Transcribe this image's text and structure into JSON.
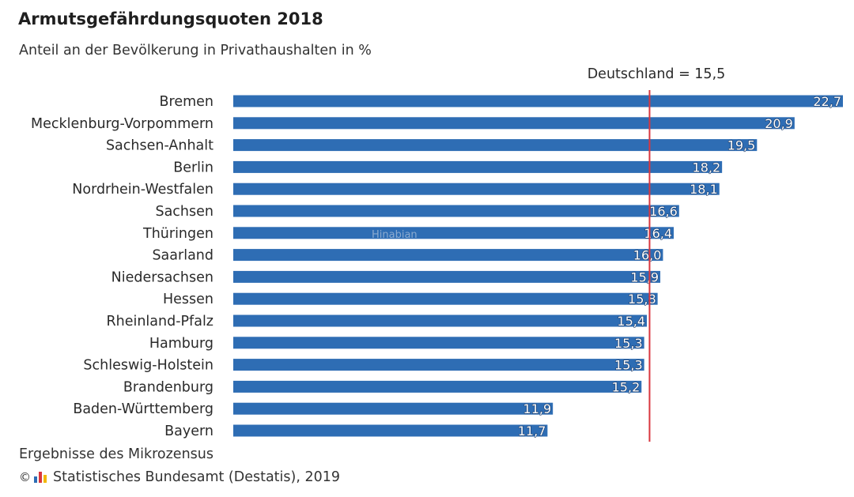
{
  "chart_data": {
    "type": "bar",
    "orientation": "horizontal",
    "title": "Armutsgefährdungsquoten 2018",
    "subtitle": "Anteil an der Bevölkerung in Privathaushalten in %",
    "categories": [
      "Bremen",
      "Mecklenburg-Vorpommern",
      "Sachsen-Anhalt",
      "Berlin",
      "Nordrhein-Westfalen",
      "Sachsen",
      "Thüringen",
      "Saarland",
      "Niedersachsen",
      "Hessen",
      "Rheinland-Pfalz",
      "Hamburg",
      "Schleswig-Holstein",
      "Brandenburg",
      "Baden-Württemberg",
      "Bayern"
    ],
    "values": [
      22.7,
      20.9,
      19.5,
      18.2,
      18.1,
      16.6,
      16.4,
      16.0,
      15.9,
      15.8,
      15.4,
      15.3,
      15.3,
      15.2,
      11.9,
      11.7
    ],
    "value_labels": [
      "22,7",
      "20,9",
      "19,5",
      "18,2",
      "18,1",
      "16,6",
      "16,4",
      "16,0",
      "15,9",
      "15,8",
      "15,4",
      "15,3",
      "15,3",
      "15,2",
      "11,9",
      "11,7"
    ],
    "reference_line": {
      "label": "Deutschland = 15,5",
      "value": 15.5
    },
    "xlim": [
      0,
      22.7
    ],
    "grid": false,
    "footnote": "Ergebnisse des Mikrozensus",
    "source": "Statistisches Bundesamt (Destatis), 2019",
    "colors": {
      "bar": "#2e6db4",
      "reference": "#d9363e"
    }
  },
  "copyright_symbol": "©",
  "watermark": "Hinabian",
  "logo_colors": [
    "#2e6db4",
    "#d9363e",
    "#f2b705"
  ]
}
